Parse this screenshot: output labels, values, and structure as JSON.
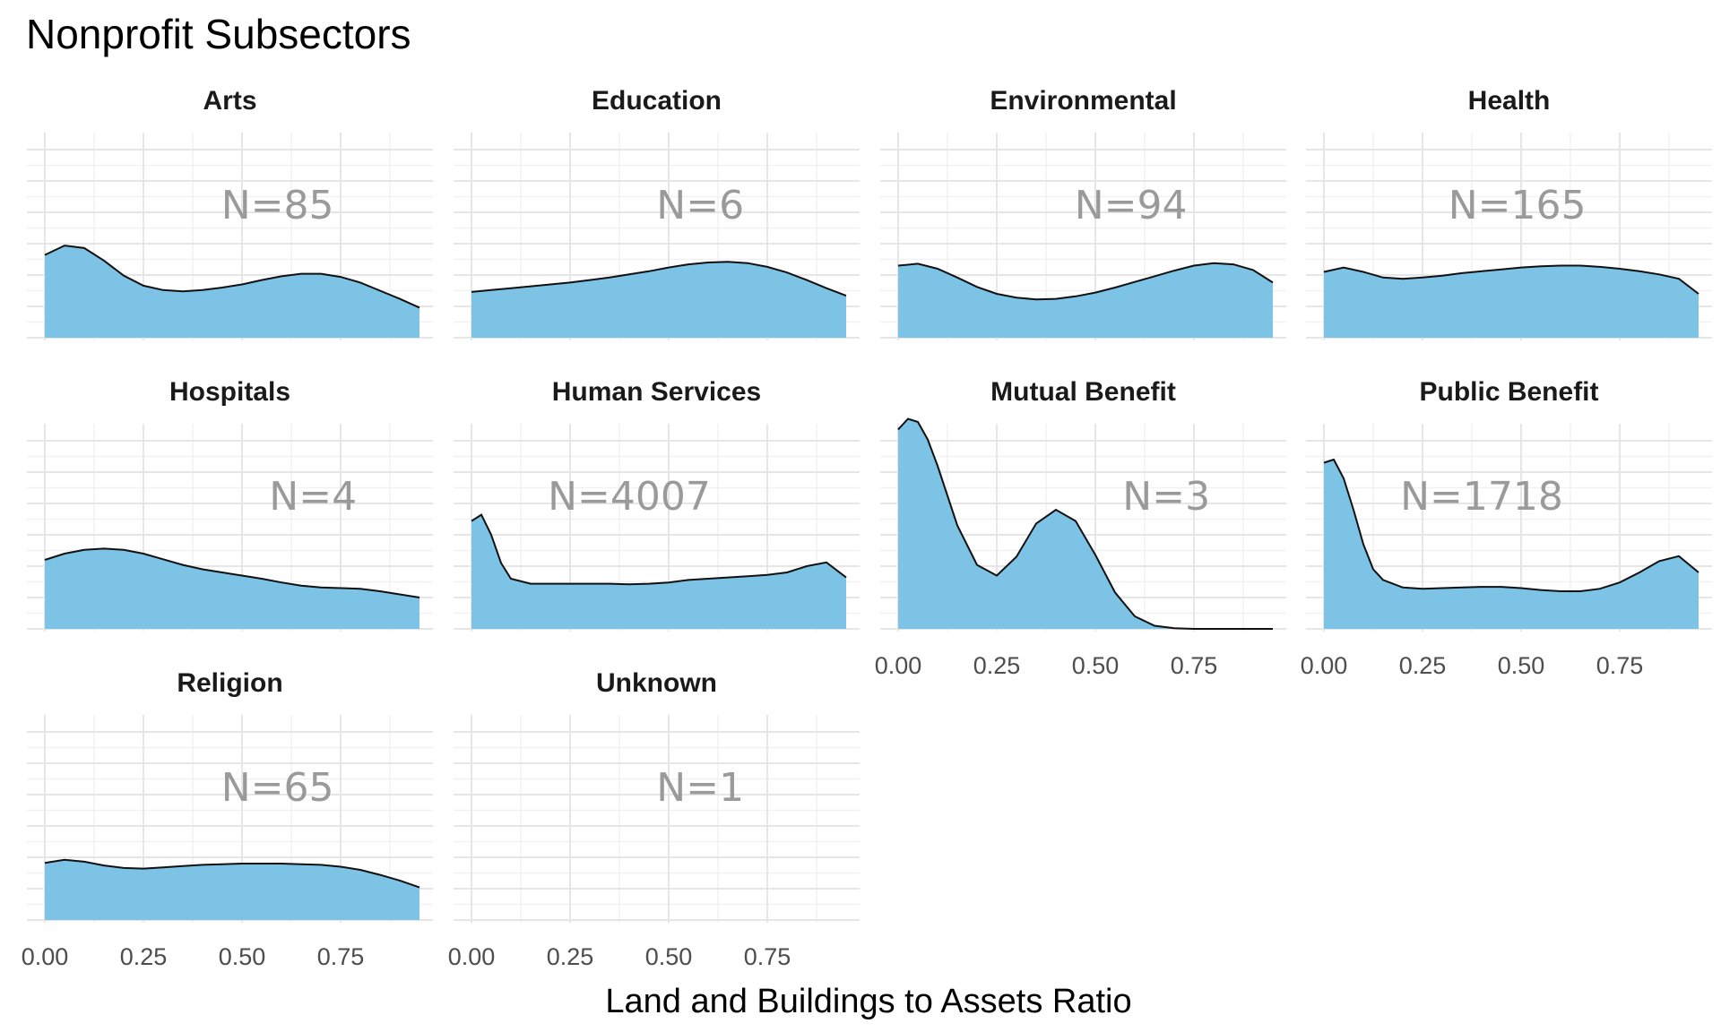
{
  "chart_data": {
    "type": "area",
    "title": "Nonprofit Subsectors",
    "xlabel": "Land and Buildings to Assets Ratio",
    "ylabel": "",
    "xlim": [
      0,
      0.95
    ],
    "x_ticks": [
      "0.00",
      "0.25",
      "0.50",
      "0.75"
    ],
    "x_tick_values": [
      0,
      0.25,
      0.5,
      0.75
    ],
    "grid": true,
    "legend": "none",
    "colors": {
      "fill": "#7dc3e6",
      "line": "#111111",
      "annotation": "#9a9a9a"
    },
    "facets": [
      {
        "name": "Arts",
        "annotation": "N=85",
        "x": [
          0,
          0.05,
          0.1,
          0.15,
          0.2,
          0.25,
          0.3,
          0.35,
          0.4,
          0.45,
          0.5,
          0.55,
          0.6,
          0.65,
          0.7,
          0.75,
          0.8,
          0.85,
          0.9,
          0.95
        ],
        "y": [
          1.32,
          1.47,
          1.43,
          1.23,
          0.99,
          0.83,
          0.76,
          0.74,
          0.76,
          0.8,
          0.85,
          0.92,
          0.98,
          1.02,
          1.02,
          0.97,
          0.88,
          0.75,
          0.62,
          0.48
        ]
      },
      {
        "name": "Education",
        "annotation": "N=6",
        "x": [
          0,
          0.05,
          0.1,
          0.15,
          0.2,
          0.25,
          0.3,
          0.35,
          0.4,
          0.45,
          0.5,
          0.55,
          0.6,
          0.65,
          0.7,
          0.75,
          0.8,
          0.85,
          0.9,
          0.95
        ],
        "y": [
          0.73,
          0.76,
          0.79,
          0.82,
          0.85,
          0.88,
          0.92,
          0.96,
          1.01,
          1.06,
          1.12,
          1.17,
          1.2,
          1.21,
          1.19,
          1.13,
          1.04,
          0.92,
          0.79,
          0.67
        ]
      },
      {
        "name": "Environmental",
        "annotation": "N=94",
        "x": [
          0,
          0.05,
          0.1,
          0.15,
          0.2,
          0.25,
          0.3,
          0.35,
          0.4,
          0.45,
          0.5,
          0.55,
          0.6,
          0.65,
          0.7,
          0.75,
          0.8,
          0.85,
          0.9,
          0.95
        ],
        "y": [
          1.15,
          1.18,
          1.1,
          0.96,
          0.81,
          0.7,
          0.64,
          0.61,
          0.62,
          0.66,
          0.72,
          0.8,
          0.89,
          0.98,
          1.07,
          1.15,
          1.19,
          1.17,
          1.08,
          0.88
        ]
      },
      {
        "name": "Health",
        "annotation": "N=165",
        "x": [
          0,
          0.05,
          0.1,
          0.15,
          0.2,
          0.25,
          0.3,
          0.35,
          0.4,
          0.45,
          0.5,
          0.55,
          0.6,
          0.65,
          0.7,
          0.75,
          0.8,
          0.85,
          0.9,
          0.95
        ],
        "y": [
          1.05,
          1.12,
          1.05,
          0.96,
          0.94,
          0.96,
          0.99,
          1.03,
          1.06,
          1.09,
          1.12,
          1.14,
          1.15,
          1.15,
          1.13,
          1.1,
          1.06,
          1.01,
          0.94,
          0.7
        ]
      },
      {
        "name": "Hospitals",
        "annotation": "N=4",
        "x": [
          0,
          0.05,
          0.1,
          0.15,
          0.2,
          0.25,
          0.3,
          0.35,
          0.4,
          0.45,
          0.5,
          0.55,
          0.6,
          0.65,
          0.7,
          0.75,
          0.8,
          0.85,
          0.9,
          0.95
        ],
        "y": [
          1.1,
          1.2,
          1.26,
          1.28,
          1.26,
          1.2,
          1.11,
          1.02,
          0.95,
          0.9,
          0.85,
          0.8,
          0.74,
          0.69,
          0.66,
          0.65,
          0.64,
          0.6,
          0.55,
          0.5
        ]
      },
      {
        "name": "Human Services",
        "annotation": "N=4007",
        "x": [
          0,
          0.025,
          0.05,
          0.075,
          0.1,
          0.15,
          0.2,
          0.25,
          0.3,
          0.35,
          0.4,
          0.45,
          0.5,
          0.55,
          0.6,
          0.65,
          0.7,
          0.75,
          0.8,
          0.85,
          0.9,
          0.95
        ],
        "y": [
          1.72,
          1.82,
          1.5,
          1.05,
          0.8,
          0.72,
          0.72,
          0.72,
          0.72,
          0.72,
          0.71,
          0.72,
          0.74,
          0.78,
          0.8,
          0.82,
          0.84,
          0.86,
          0.9,
          1.0,
          1.06,
          0.82
        ]
      },
      {
        "name": "Mutual Benefit",
        "annotation": "N=3",
        "x": [
          0,
          0.025,
          0.05,
          0.075,
          0.1,
          0.15,
          0.2,
          0.25,
          0.3,
          0.35,
          0.4,
          0.45,
          0.5,
          0.55,
          0.6,
          0.65,
          0.7,
          0.75,
          0.8,
          0.85,
          0.9,
          0.95
        ],
        "y": [
          3.18,
          3.35,
          3.3,
          3.02,
          2.6,
          1.65,
          1.02,
          0.85,
          1.15,
          1.68,
          1.9,
          1.72,
          1.18,
          0.58,
          0.2,
          0.05,
          0.01,
          0.0,
          0.0,
          0.0,
          0.0,
          0.0
        ]
      },
      {
        "name": "Public Benefit",
        "annotation": "N=1718",
        "x": [
          0,
          0.025,
          0.05,
          0.075,
          0.1,
          0.125,
          0.15,
          0.2,
          0.25,
          0.3,
          0.35,
          0.4,
          0.45,
          0.5,
          0.55,
          0.6,
          0.65,
          0.7,
          0.75,
          0.8,
          0.85,
          0.9,
          0.95
        ],
        "y": [
          2.65,
          2.7,
          2.4,
          1.9,
          1.35,
          0.95,
          0.78,
          0.66,
          0.64,
          0.65,
          0.66,
          0.67,
          0.67,
          0.65,
          0.62,
          0.6,
          0.6,
          0.64,
          0.74,
          0.9,
          1.08,
          1.16,
          0.9
        ]
      },
      {
        "name": "Religion",
        "annotation": "N=65",
        "x": [
          0,
          0.05,
          0.1,
          0.15,
          0.2,
          0.25,
          0.3,
          0.35,
          0.4,
          0.45,
          0.5,
          0.55,
          0.6,
          0.65,
          0.7,
          0.75,
          0.8,
          0.85,
          0.9,
          0.95
        ],
        "y": [
          0.91,
          0.96,
          0.93,
          0.87,
          0.83,
          0.82,
          0.84,
          0.86,
          0.88,
          0.89,
          0.9,
          0.9,
          0.9,
          0.89,
          0.88,
          0.85,
          0.8,
          0.72,
          0.63,
          0.52
        ]
      },
      {
        "name": "Unknown",
        "annotation": "N=1",
        "x": [],
        "y": []
      }
    ]
  }
}
